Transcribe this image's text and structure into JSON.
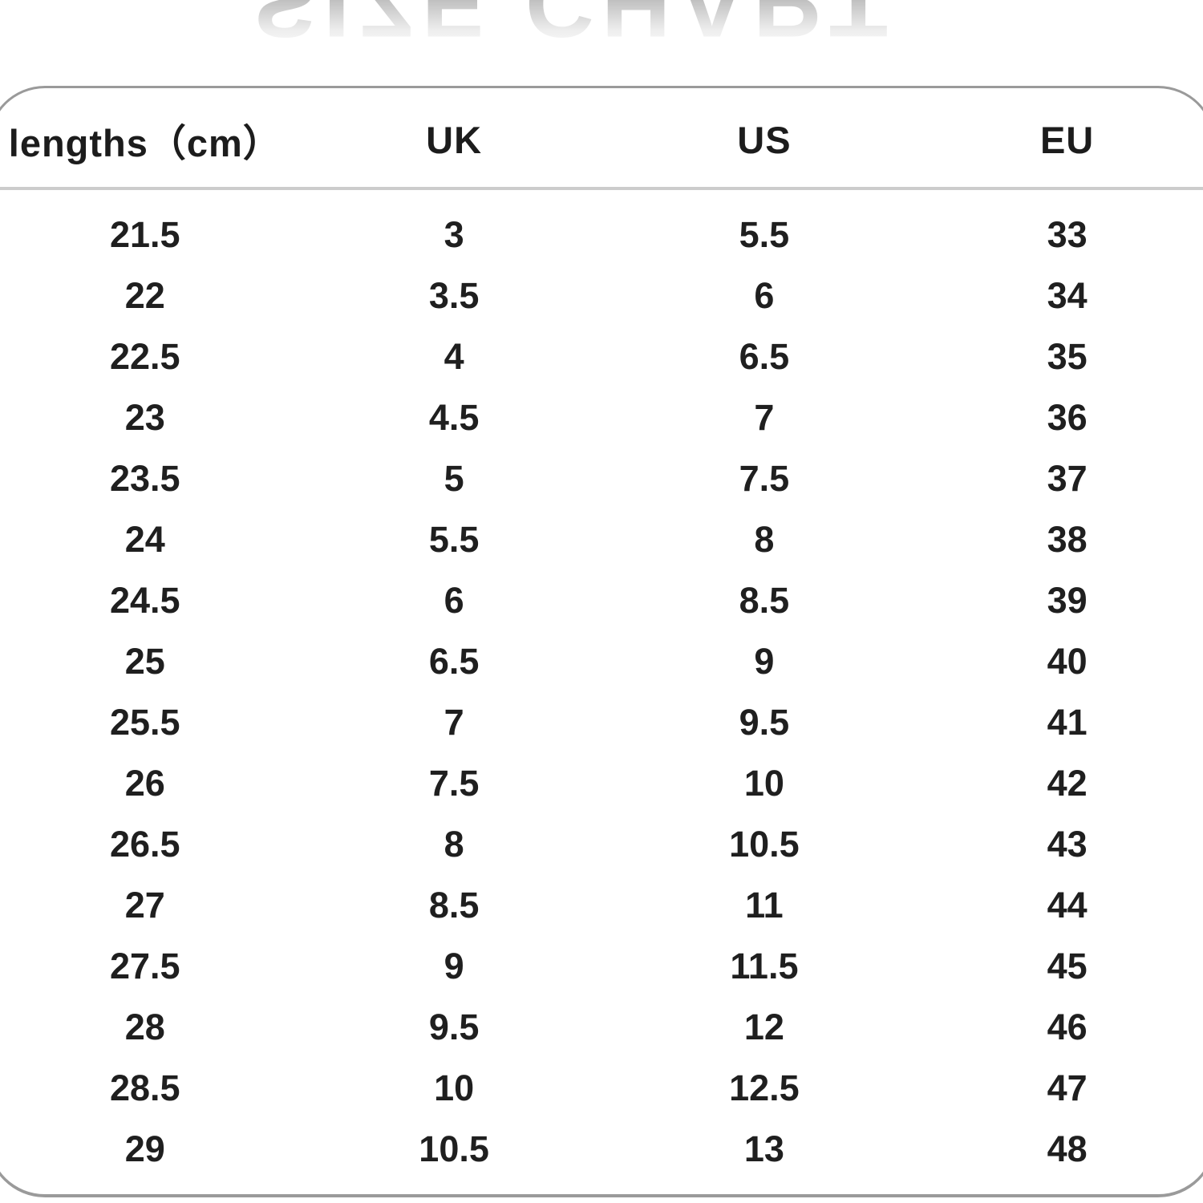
{
  "watermark": {
    "reflected_title": "SIZE CHART"
  },
  "colors": {
    "card_border": "#9a9a9a",
    "header_separator": "#cccccc",
    "text": "#1f1f1f",
    "watermark_gray": "#c0c0c0",
    "background": "#ffffff"
  },
  "chart_data": {
    "type": "table",
    "title": "SIZE CHART",
    "columns": [
      "lengths（cm）",
      "UK",
      "US",
      "EU"
    ],
    "rows": [
      [
        "21.5",
        "3",
        "5.5",
        "33"
      ],
      [
        "22",
        "3.5",
        "6",
        "34"
      ],
      [
        "22.5",
        "4",
        "6.5",
        "35"
      ],
      [
        "23",
        "4.5",
        "7",
        "36"
      ],
      [
        "23.5",
        "5",
        "7.5",
        "37"
      ],
      [
        "24",
        "5.5",
        "8",
        "38"
      ],
      [
        "24.5",
        "6",
        "8.5",
        "39"
      ],
      [
        "25",
        "6.5",
        "9",
        "40"
      ],
      [
        "25.5",
        "7",
        "9.5",
        "41"
      ],
      [
        "26",
        "7.5",
        "10",
        "42"
      ],
      [
        "26.5",
        "8",
        "10.5",
        "43"
      ],
      [
        "27",
        "8.5",
        "11",
        "44"
      ],
      [
        "27.5",
        "9",
        "11.5",
        "45"
      ],
      [
        "28",
        "9.5",
        "12",
        "46"
      ],
      [
        "28.5",
        "10",
        "12.5",
        "47"
      ],
      [
        "29",
        "10.5",
        "13",
        "48"
      ]
    ]
  }
}
